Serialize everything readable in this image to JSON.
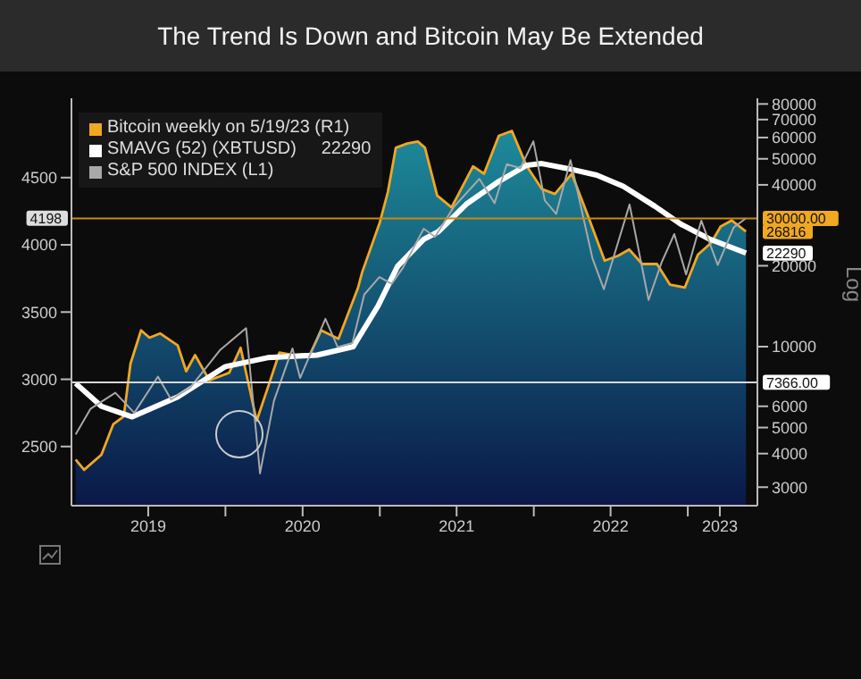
{
  "chart_data": {
    "type": "line",
    "title": "The Trend Is Down and Bitcoin May Be Extended",
    "y2label": "Log",
    "legend": "top left",
    "log": "y2",
    "marker": "none",
    "xlim": [
      "2019-01-01",
      "2023-06-15"
    ],
    "xticks": [
      {
        "value": "2019-07-02",
        "label": "2019"
      },
      {
        "value": "2020-01-01",
        "label": null
      },
      {
        "value": "2020-07-02",
        "label": "2020"
      },
      {
        "value": "2021-01-01",
        "label": null
      },
      {
        "value": "2021-07-02",
        "label": "2021"
      },
      {
        "value": "2022-01-01",
        "label": null
      },
      {
        "value": "2022-07-02",
        "label": "2022"
      },
      {
        "value": "2023-01-01",
        "label": null
      },
      {
        "value": "2023-03-18",
        "label": "2023"
      }
    ],
    "ylim": [
      2060,
      5090
    ],
    "yticks": [
      2500,
      3000,
      3500,
      4000,
      4500
    ],
    "y2lim": [
      2560,
      84000
    ],
    "y2ticks": [
      3000,
      4000,
      5000,
      6000,
      10000,
      20000,
      40000,
      50000,
      60000,
      70000,
      80000
    ],
    "series": [
      {
        "name": "Bitcoin weekly on 5/19/23 (R1)",
        "type": "area",
        "axis": "y2",
        "color": "#f0a820",
        "x": [
          "2019-01-11",
          "2019-01-31",
          "2019-03-13",
          "2019-04-10",
          "2019-05-05",
          "2019-05-21",
          "2019-06-15",
          "2019-07-05",
          "2019-07-30",
          "2019-09-10",
          "2019-09-30",
          "2019-10-21",
          "2019-11-24",
          "2020-01-10",
          "2020-02-06",
          "2020-03-15",
          "2020-04-10",
          "2020-05-08",
          "2020-06-10",
          "2020-07-20",
          "2020-08-15",
          "2020-09-25",
          "2020-11-10",
          "2020-11-20",
          "2021-01-01",
          "2021-01-20",
          "2021-02-08",
          "2021-03-07",
          "2021-04-01",
          "2021-04-18",
          "2021-05-17",
          "2021-06-20",
          "2021-08-10",
          "2021-09-05",
          "2021-10-10",
          "2021-11-10",
          "2021-12-15",
          "2022-01-20",
          "2022-02-20",
          "2022-04-01",
          "2022-05-10",
          "2022-06-18",
          "2022-07-20",
          "2022-08-15",
          "2022-09-15",
          "2022-10-20",
          "2022-11-20",
          "2022-12-25",
          "2023-01-25",
          "2023-02-25",
          "2023-03-20",
          "2023-04-15",
          "2023-05-19"
        ],
        "values": [
          3800,
          3480,
          3960,
          5140,
          5500,
          8650,
          11500,
          10800,
          11200,
          10100,
          8100,
          9300,
          7500,
          8000,
          9900,
          5300,
          7000,
          9500,
          9300,
          9400,
          11500,
          10700,
          16500,
          18900,
          29000,
          37600,
          55000,
          57000,
          58000,
          55000,
          36500,
          33000,
          46900,
          44000,
          60900,
          63500,
          47000,
          38600,
          37000,
          44000,
          30500,
          20900,
          21800,
          23000,
          20300,
          20300,
          17000,
          16600,
          22000,
          24300,
          28000,
          29500,
          26816
        ]
      },
      {
        "name": "SMAVG (52) (XBTUSD)     22290",
        "axis": "y2",
        "color": "#ffffff",
        "x": [
          "2019-01-11",
          "2019-03-13",
          "2019-05-25",
          "2019-09-10",
          "2020-01-01",
          "2020-04-10",
          "2020-08-05",
          "2020-10-30",
          "2020-12-28",
          "2021-02-12",
          "2021-04-15",
          "2021-05-20",
          "2021-07-25",
          "2021-10-10",
          "2021-12-15",
          "2022-01-20",
          "2022-03-25",
          "2022-05-30",
          "2022-08-01",
          "2022-10-15",
          "2022-12-15",
          "2023-02-20",
          "2023-05-19"
        ],
        "values": [
          7300,
          6000,
          5480,
          6500,
          8430,
          9100,
          9300,
          10000,
          14200,
          19900,
          25100,
          26800,
          33900,
          41200,
          47300,
          48000,
          45900,
          43500,
          39500,
          33300,
          28600,
          25200,
          22290
        ]
      },
      {
        "name": "S&P 500 INDEX (L1)",
        "color": "#a8a8a8",
        "x": [
          "2019-01-11",
          "2019-02-15",
          "2019-04-15",
          "2019-05-30",
          "2019-07-25",
          "2019-08-25",
          "2019-10-10",
          "2019-12-20",
          "2020-02-19",
          "2020-03-23",
          "2020-04-25",
          "2020-06-08",
          "2020-06-26",
          "2020-08-25",
          "2020-09-23",
          "2020-10-28",
          "2020-11-25",
          "2020-12-31",
          "2021-01-29",
          "2021-02-25",
          "2021-04-15",
          "2021-05-12",
          "2021-06-25",
          "2021-08-25",
          "2021-09-30",
          "2021-10-29",
          "2021-11-30",
          "2021-12-31",
          "2022-01-27",
          "2022-02-23",
          "2022-03-29",
          "2022-05-20",
          "2022-06-16",
          "2022-08-16",
          "2022-09-30",
          "2022-10-31",
          "2022-11-30",
          "2022-12-28",
          "2023-02-02",
          "2023-03-13",
          "2023-04-20",
          "2023-05-19"
        ],
        "values": [
          2590,
          2780,
          2900,
          2750,
          3020,
          2850,
          2940,
          3220,
          3380,
          2300,
          2840,
          3230,
          3010,
          3450,
          3240,
          3270,
          3630,
          3760,
          3710,
          3830,
          4120,
          4060,
          4280,
          4490,
          4310,
          4600,
          4570,
          4770,
          4330,
          4230,
          4630,
          3900,
          3670,
          4300,
          3590,
          3870,
          4080,
          3780,
          4180,
          3850,
          4130,
          4198
        ]
      }
    ],
    "ref_lines": [
      {
        "axis": "y2",
        "value": 30000,
        "label": "30000.00",
        "color": "#c88a10"
      },
      {
        "axis": "y2",
        "value": 7366,
        "label": "7366.00",
        "color": "#d8d8d8"
      }
    ],
    "annotations": [
      "26816",
      "22290",
      "4198"
    ]
  }
}
